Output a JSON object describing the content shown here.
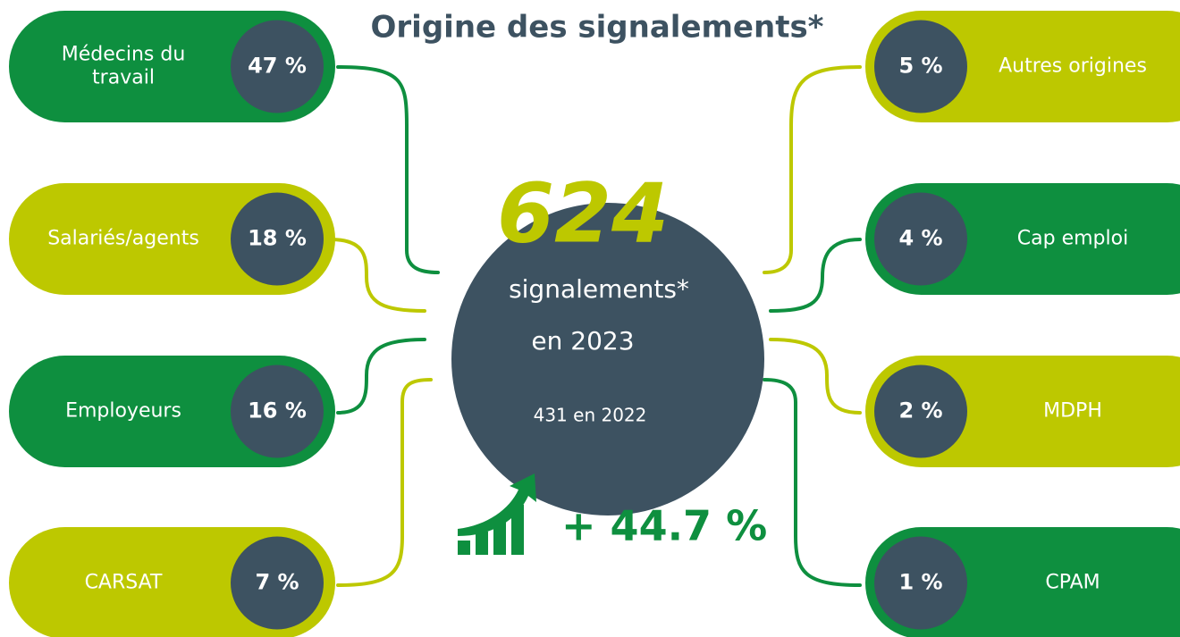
{
  "title": "Origine des signalements*",
  "center": {
    "count": "624",
    "line1": "signalements*",
    "line2": "en 2023",
    "previous": "431 en 2022"
  },
  "growth": "+ 44.7 %",
  "left": [
    {
      "label": [
        "Médecins du",
        "travail"
      ],
      "percent": "47 %"
    },
    {
      "label": [
        "Salariés/agents"
      ],
      "percent": "18 %"
    },
    {
      "label": [
        "Employeurs"
      ],
      "percent": "16 %"
    },
    {
      "label": [
        "CARSAT"
      ],
      "percent": "7  %"
    }
  ],
  "right": [
    {
      "label": [
        "Autres origines"
      ],
      "percent": "5 %"
    },
    {
      "label": [
        "Cap emploi"
      ],
      "percent": "4 %"
    },
    {
      "label": [
        "MDPH"
      ],
      "percent": "2 %"
    },
    {
      "label": [
        "CPAM"
      ],
      "percent": "1 %"
    }
  ]
}
